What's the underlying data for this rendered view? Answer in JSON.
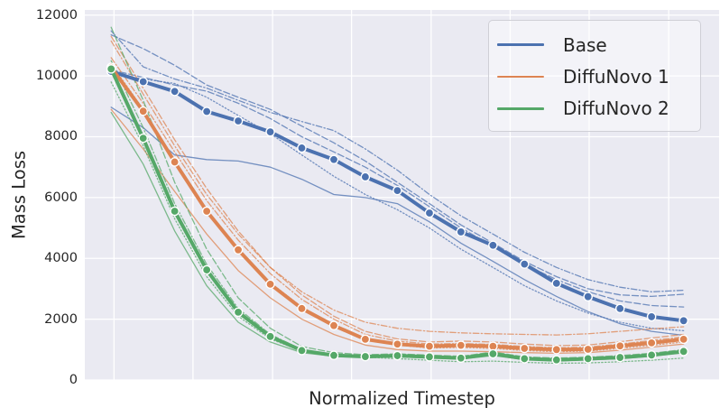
{
  "chart_data": {
    "type": "line",
    "title": "",
    "xlabel": "Normalized Timestep",
    "ylabel": "Mass Loss",
    "legend_position": "upper right",
    "grid": true,
    "plot_background": "#eaeaf2",
    "gridline_color": "#ffffff",
    "text_color": "#262626",
    "yticks": [
      0,
      2000,
      4000,
      6000,
      8000,
      10000,
      12000
    ],
    "ylim": [
      0,
      12170
    ],
    "xlim": [
      -0.046,
      1.062
    ],
    "x_gridlines": [
      0.005,
      0.143,
      0.282,
      0.42,
      0.559,
      0.697,
      0.835,
      0.974
    ],
    "x": [
      0,
      0.056,
      0.111,
      0.167,
      0.222,
      0.278,
      0.333,
      0.389,
      0.444,
      0.5,
      0.556,
      0.611,
      0.667,
      0.722,
      0.778,
      0.833,
      0.889,
      0.944,
      1
    ],
    "series": [
      {
        "name": "Base",
        "color": "#4c72b0",
        "style": "solid",
        "markers": true,
        "values": [
          10150,
          9810,
          9490,
          8830,
          8520,
          8160,
          7630,
          7250,
          6680,
          6230,
          5490,
          4870,
          4430,
          3810,
          3180,
          2740,
          2350,
          2080,
          1950
        ]
      },
      {
        "name": "DiffuNovo 1",
        "color": "#dd8452",
        "style": "solid",
        "markers": true,
        "values": [
          10280,
          8840,
          7170,
          5550,
          4280,
          3150,
          2350,
          1790,
          1340,
          1180,
          1110,
          1140,
          1110,
          1040,
          1000,
          1010,
          1120,
          1220,
          1340
        ]
      },
      {
        "name": "DiffuNovo 2",
        "color": "#55a868",
        "style": "solid",
        "markers": true,
        "values": [
          10230,
          7950,
          5550,
          3620,
          2230,
          1430,
          970,
          810,
          770,
          800,
          760,
          720,
          860,
          700,
          660,
          700,
          740,
          820,
          940
        ]
      }
    ],
    "runs": [
      {
        "group": "Base",
        "color": "#4c72b0",
        "style": "solid",
        "values": [
          8970,
          8300,
          7400,
          7250,
          7200,
          7000,
          6600,
          6100,
          6000,
          5800,
          5200,
          4500,
          3900,
          3300,
          2750,
          2250,
          1850,
          1600,
          1470
        ]
      },
      {
        "group": "Base",
        "color": "#4c72b0",
        "style": "dashed",
        "values": [
          11350,
          10900,
          10350,
          9700,
          9300,
          8900,
          8350,
          7800,
          7200,
          6500,
          5800,
          5100,
          4500,
          3900,
          3400,
          3000,
          2800,
          2750,
          2820
        ]
      },
      {
        "group": "Base",
        "color": "#4c72b0",
        "style": "dashdot",
        "values": [
          11480,
          10300,
          9900,
          9600,
          9200,
          8800,
          8500,
          8200,
          7600,
          6900,
          6100,
          5400,
          4800,
          4200,
          3700,
          3300,
          3050,
          2900,
          2950
        ]
      },
      {
        "group": "Base",
        "color": "#4c72b0",
        "style": "dotted",
        "values": [
          10050,
          9900,
          9750,
          9300,
          8700,
          8100,
          7400,
          6700,
          6100,
          5600,
          5000,
          4300,
          3700,
          3100,
          2600,
          2200,
          1900,
          1700,
          1620
        ]
      },
      {
        "group": "Base",
        "color": "#4c72b0",
        "style": "dashed",
        "values": [
          10200,
          9950,
          9700,
          9500,
          9100,
          8600,
          8000,
          7500,
          7000,
          6400,
          5700,
          5000,
          4400,
          3800,
          3300,
          2900,
          2600,
          2450,
          2400
        ]
      },
      {
        "group": "DiffuNovo 1",
        "color": "#dd8452",
        "style": "solid",
        "values": [
          8900,
          7600,
          6200,
          4800,
          3600,
          2700,
          2000,
          1500,
          1150,
          1000,
          950,
          950,
          930,
          900,
          880,
          900,
          980,
          1080,
          1180
        ]
      },
      {
        "group": "DiffuNovo 1",
        "color": "#dd8452",
        "style": "dashed",
        "values": [
          11300,
          9600,
          7900,
          6300,
          4900,
          3700,
          2800,
          2100,
          1600,
          1350,
          1250,
          1280,
          1250,
          1180,
          1130,
          1150,
          1260,
          1380,
          1500
        ]
      },
      {
        "group": "DiffuNovo 1",
        "color": "#dd8452",
        "style": "dashdot",
        "values": [
          11150,
          9400,
          7700,
          6100,
          4800,
          3700,
          2900,
          2300,
          1900,
          1700,
          1600,
          1550,
          1520,
          1500,
          1480,
          1520,
          1600,
          1680,
          1750
        ]
      },
      {
        "group": "DiffuNovo 1",
        "color": "#dd8452",
        "style": "dotted",
        "values": [
          10400,
          8900,
          7200,
          5600,
          4300,
          3200,
          2400,
          1800,
          1350,
          1150,
          1050,
          1070,
          1040,
          970,
          930,
          950,
          1040,
          1140,
          1250
        ]
      },
      {
        "group": "DiffuNovo 1",
        "color": "#dd8452",
        "style": "dashdot",
        "values": [
          10600,
          9100,
          7500,
          5900,
          4600,
          3500,
          2650,
          2000,
          1500,
          1280,
          1180,
          1200,
          1170,
          1100,
          1060,
          1080,
          1180,
          1300,
          1420
        ]
      },
      {
        "group": "DiffuNovo 2",
        "color": "#55a868",
        "style": "solid",
        "values": [
          8800,
          7100,
          4900,
          3100,
          1900,
          1250,
          900,
          780,
          740,
          760,
          720,
          690,
          800,
          670,
          630,
          660,
          700,
          780,
          890
        ]
      },
      {
        "group": "DiffuNovo 2",
        "color": "#55a868",
        "style": "dashed",
        "values": [
          11600,
          9200,
          6500,
          4300,
          2700,
          1700,
          1100,
          900,
          830,
          860,
          820,
          780,
          920,
          760,
          720,
          750,
          800,
          880,
          1000
        ]
      },
      {
        "group": "DiffuNovo 2",
        "color": "#55a868",
        "style": "dashdot",
        "values": [
          10500,
          8300,
          5800,
          3800,
          2350,
          1500,
          1000,
          840,
          790,
          820,
          780,
          740,
          880,
          720,
          680,
          710,
          760,
          840,
          960
        ]
      },
      {
        "group": "DiffuNovo 2",
        "color": "#55a868",
        "style": "dotted",
        "values": [
          9800,
          7700,
          5300,
          3400,
          2100,
          1350,
          950,
          800,
          750,
          700,
          650,
          600,
          620,
          580,
          550,
          560,
          600,
          650,
          720
        ]
      }
    ]
  }
}
